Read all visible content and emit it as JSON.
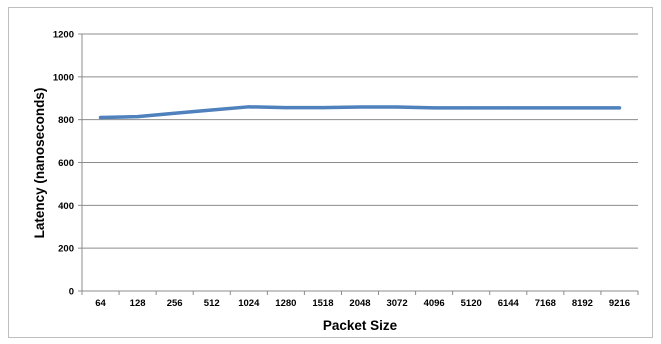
{
  "chart_data": {
    "type": "line",
    "xlabel": "Packet Size",
    "ylabel": "Latency (nanoseconds)",
    "categories": [
      "64",
      "128",
      "256",
      "512",
      "1024",
      "1280",
      "1518",
      "2048",
      "3072",
      "4096",
      "5120",
      "6144",
      "7168",
      "8192",
      "9216"
    ],
    "series": [
      {
        "values": [
          810,
          814,
          830,
          845,
          860,
          856,
          856,
          859,
          859,
          855,
          855,
          855,
          855,
          855,
          855
        ]
      }
    ],
    "ylim": [
      0,
      1200
    ],
    "yticks": [
      0,
      200,
      400,
      600,
      800,
      1000,
      1200
    ],
    "ytick_labels": [
      "0",
      "200",
      "400",
      "600",
      "800",
      "1000",
      "1200"
    ],
    "grid": true,
    "colors": {
      "line": "#4f81bd",
      "grid": "#8c8c8c",
      "axis": "#8c8c8c"
    }
  }
}
